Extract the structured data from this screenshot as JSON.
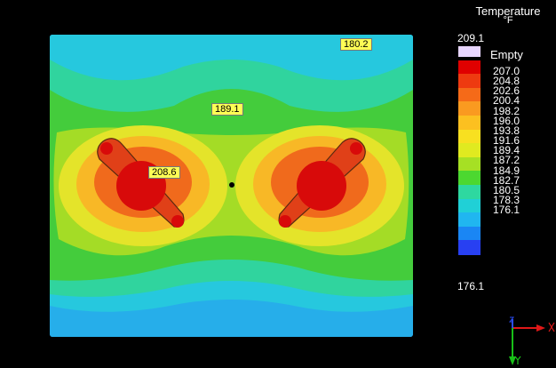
{
  "legend": {
    "title": "Temperature",
    "unit": "°F",
    "max": "209.1",
    "min": "176.1",
    "empty_label": "Empty",
    "ticks": [
      "207.0",
      "204.8",
      "202.6",
      "200.4",
      "198.2",
      "196.0",
      "193.8",
      "191.6",
      "189.4",
      "187.2",
      "184.9",
      "182.7",
      "180.5",
      "178.3",
      "176.1"
    ],
    "colors": [
      "#e8d6ff",
      "#e00000",
      "#ee3a10",
      "#f56a18",
      "#fa9a20",
      "#fcc020",
      "#f8e020",
      "#e0ea20",
      "#a6e024",
      "#4cd830",
      "#2ed8a0",
      "#20d0d6",
      "#20b6f0",
      "#1a86f4",
      "#2840f2"
    ]
  },
  "probes": {
    "top_right": "180.2",
    "center": "189.1",
    "left_hot": "208.6"
  },
  "colors": {
    "background": "#000000",
    "hot": "#d80a0a",
    "cool": "#2aa2e8",
    "mid": "#4ccc30"
  }
}
